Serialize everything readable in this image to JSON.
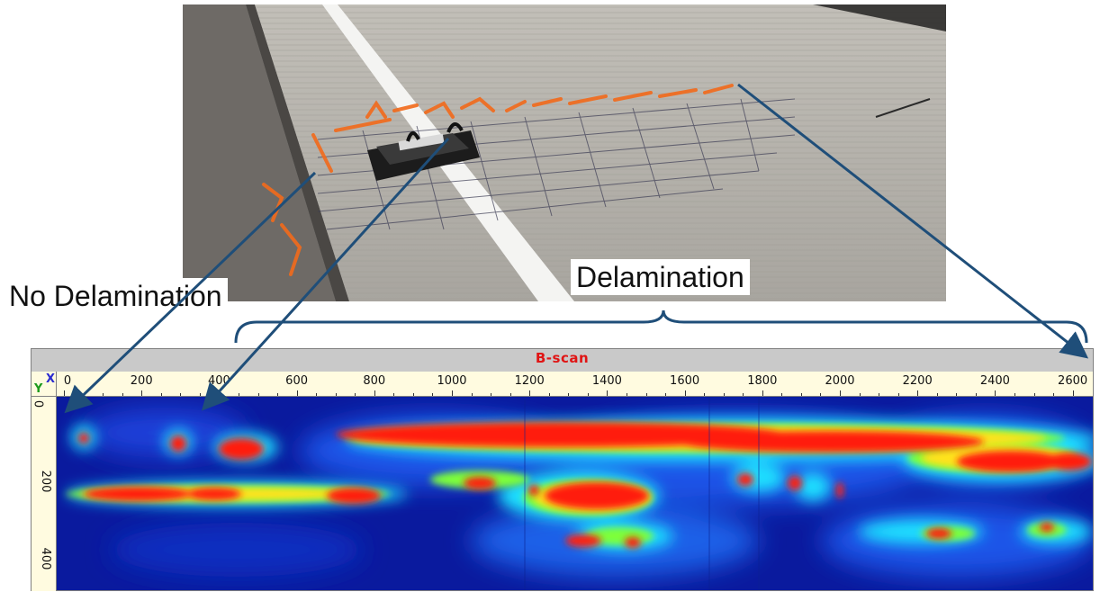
{
  "photo": {
    "subject": "bridge-deck-photo"
  },
  "labels": {
    "no_delamination": "No Delamination",
    "delamination": "Delamination"
  },
  "bscan": {
    "title": "B-scan",
    "x_axis_letter": "X",
    "y_axis_letter": "Y",
    "x_ticks": [
      "0",
      "200",
      "400",
      "600",
      "800",
      "1000",
      "1200",
      "1400",
      "1600",
      "1800",
      "2000",
      "2200",
      "2400",
      "2600"
    ],
    "y_ticks": [
      "0",
      "200",
      "400"
    ]
  },
  "colors": {
    "arrow": "#1f4e79",
    "title_text": "#e01414",
    "axis_bg": "#fffbe0",
    "title_bg": "#c9c9c9"
  }
}
